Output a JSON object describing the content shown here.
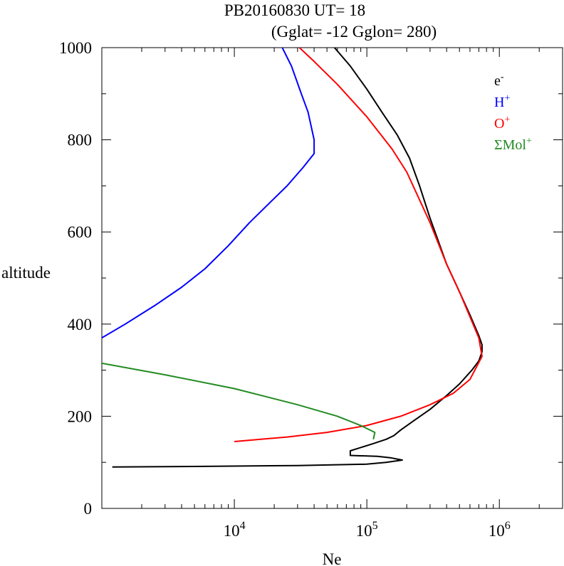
{
  "chart_data": {
    "type": "line",
    "title_line1": "PB20160830   UT=  18",
    "title_line2": "(Gglat= -12   Gglon=  280)",
    "xlabel": "Ne",
    "ylabel": "altitude",
    "x_scale": "log",
    "xlim": [
      1000,
      3000000
    ],
    "ylim": [
      0,
      1000
    ],
    "x_tick_labels": [
      {
        "base": "10",
        "exp": "4",
        "value": 10000
      },
      {
        "base": "10",
        "exp": "5",
        "value": 100000
      },
      {
        "base": "10",
        "exp": "6",
        "value": 1000000
      }
    ],
    "y_ticks": [
      0,
      200,
      400,
      600,
      800,
      1000
    ],
    "legend_position": "top-right",
    "series": [
      {
        "key": "e",
        "label_base": "e",
        "label_sup": "-",
        "color": "#000000",
        "points": [
          [
            1200,
            90
          ],
          [
            5000,
            91
          ],
          [
            30000,
            93
          ],
          [
            100000,
            96
          ],
          [
            140000,
            100
          ],
          [
            185000,
            105
          ],
          [
            150000,
            110
          ],
          [
            120000,
            113
          ],
          [
            75000,
            115
          ],
          [
            75000,
            125
          ],
          [
            110000,
            140
          ],
          [
            140000,
            150
          ],
          [
            160000,
            158
          ],
          [
            180000,
            170
          ],
          [
            220000,
            188
          ],
          [
            300000,
            215
          ],
          [
            400000,
            245
          ],
          [
            500000,
            270
          ],
          [
            620000,
            300
          ],
          [
            700000,
            320
          ],
          [
            740000,
            340
          ],
          [
            740000,
            355
          ],
          [
            700000,
            375
          ],
          [
            600000,
            420
          ],
          [
            500000,
            470
          ],
          [
            400000,
            530
          ],
          [
            300000,
            630
          ],
          [
            250000,
            700
          ],
          [
            210000,
            760
          ],
          [
            170000,
            810
          ],
          [
            130000,
            860
          ],
          [
            100000,
            910
          ],
          [
            75000,
            960
          ],
          [
            57000,
            1000
          ]
        ]
      },
      {
        "key": "H",
        "label_base": "H",
        "label_sup": "+",
        "color": "#0000ff",
        "points": [
          [
            1000,
            370
          ],
          [
            1500,
            400
          ],
          [
            2500,
            440
          ],
          [
            4000,
            480
          ],
          [
            6000,
            520
          ],
          [
            9000,
            570
          ],
          [
            13000,
            620
          ],
          [
            18000,
            660
          ],
          [
            25000,
            700
          ],
          [
            33000,
            740
          ],
          [
            40000,
            770
          ],
          [
            40000,
            800
          ],
          [
            36000,
            860
          ],
          [
            32000,
            900
          ],
          [
            27000,
            960
          ],
          [
            23000,
            1000
          ]
        ]
      },
      {
        "key": "O",
        "label_base": "O",
        "label_sup": "+",
        "color": "#ff0000",
        "points": [
          [
            10000,
            145
          ],
          [
            25000,
            155
          ],
          [
            50000,
            165
          ],
          [
            100000,
            180
          ],
          [
            180000,
            200
          ],
          [
            300000,
            225
          ],
          [
            450000,
            250
          ],
          [
            600000,
            280
          ],
          [
            740000,
            330
          ],
          [
            700000,
            370
          ],
          [
            500000,
            470
          ],
          [
            400000,
            530
          ],
          [
            300000,
            620
          ],
          [
            200000,
            730
          ],
          [
            155000,
            780
          ],
          [
            100000,
            850
          ],
          [
            60000,
            920
          ],
          [
            40000,
            970
          ],
          [
            31000,
            1000
          ]
        ]
      },
      {
        "key": "Mol",
        "label_base": "ΣMol",
        "label_sup": "+",
        "color": "#228b22",
        "points": [
          [
            1000,
            315
          ],
          [
            3000,
            290
          ],
          [
            10000,
            260
          ],
          [
            30000,
            225
          ],
          [
            60000,
            200
          ],
          [
            90000,
            180
          ],
          [
            115000,
            165
          ],
          [
            112000,
            150
          ]
        ]
      }
    ]
  }
}
